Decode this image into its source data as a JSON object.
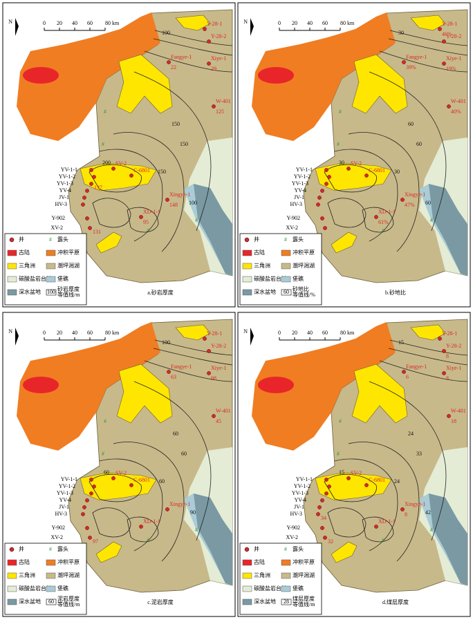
{
  "north": "N",
  "scale": [
    "0",
    "20",
    "40",
    "60",
    "80 km"
  ],
  "legend": [
    "井",
    "露头",
    "古陆",
    "冲积平原",
    "三角洲",
    "潮坪潟湖",
    "碳酸盐岩台地",
    "堡礁",
    "深水盆地"
  ],
  "wells": [
    "Y-28-1",
    "Y-28-2",
    "Fangye-1",
    "Xiye-1",
    "W-401",
    "Xingye-1",
    "YV-1-1",
    "YV-1-2",
    "YV-1-3",
    "YV-4",
    "JV-1",
    "HV-3",
    "Y-902",
    "XV-2",
    "SV-2",
    "C-6801",
    "XD-1-1"
  ],
  "panels": [
    {
      "caption": "a.砂岩厚度",
      "isoline": [
        "砂岩厚度",
        "等值线/m"
      ],
      "isoline_value": 100,
      "values": [
        null,
        null,
        22,
        29,
        125,
        148,
        null,
        null,
        137,
        null,
        null,
        null,
        null,
        131,
        null,
        null,
        95
      ],
      "contours": [
        100,
        150,
        150,
        150,
        100,
        200
      ]
    },
    {
      "caption": "b.砂地比",
      "isoline": [
        "砂地比",
        "等值线/%"
      ],
      "isoline_value": 60,
      "values": [
        "46%",
        null,
        "39%",
        "19%",
        "40%",
        "47%",
        null,
        null,
        null,
        null,
        null,
        null,
        null,
        null,
        null,
        null,
        "61%"
      ],
      "contours": [
        30,
        60,
        30,
        60,
        60,
        30
      ]
    },
    {
      "caption": "c.泥岩厚度",
      "isoline": [
        "泥岩厚度",
        "等值线/m"
      ],
      "isoline_value": 60,
      "values": [
        null,
        null,
        63,
        98,
        45,
        null,
        null,
        null,
        null,
        null,
        null,
        null,
        null,
        97,
        null,
        null,
        null
      ],
      "contours": [
        100,
        60,
        60,
        60,
        90,
        60
      ]
    },
    {
      "caption": "d.煤层厚度",
      "isoline": [
        "煤层厚度",
        "等值线/m"
      ],
      "isoline_value": 28,
      "values": [
        null,
        8,
        6,
        8,
        18,
        8,
        null,
        null,
        null,
        null,
        null,
        34,
        null,
        32,
        null,
        null,
        null
      ],
      "contours": [
        15,
        24,
        24,
        33,
        42,
        15
      ]
    }
  ]
}
